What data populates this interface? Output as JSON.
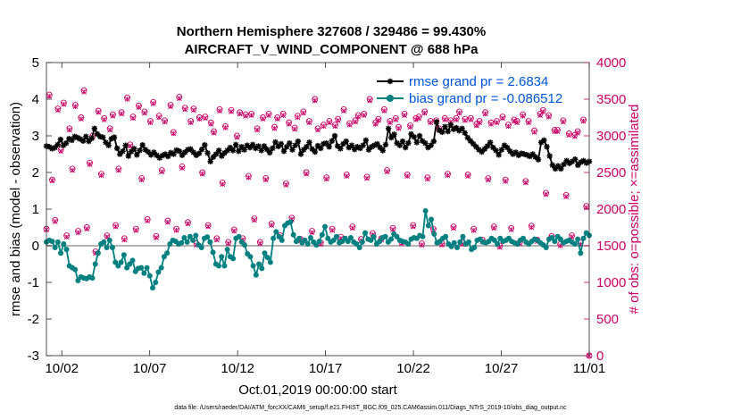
{
  "chart_data": {
    "type": "line",
    "title_line1": "Northern Hemisphere 327608 / 329486 = 99.430%",
    "title_line2": "AIRCRAFT_V_WIND_COMPONENT @ 688 hPa",
    "xlabel": "Oct.01,2019 00:00:00 start",
    "ylabel_left": "rmse and bias (model - observation)",
    "ylabel_right": "# of obs: o=possible; ×=assimilated",
    "footnote": "data file: /Users/raeder/DAI/ATM_forcXX/CAM6_setup/f.e21.FHIST_BGC.f09_025.CAM6assim.011/Diags_NTrS_2019-10/obs_diag_output.nc",
    "x_tick_labels": [
      "10/02",
      "10/07",
      "10/12",
      "10/17",
      "10/22",
      "10/27",
      "11/01"
    ],
    "x_tick_days": [
      1,
      6,
      11,
      16,
      21,
      26,
      31
    ],
    "xlim_days": [
      0.125,
      31
    ],
    "ylim_left": [
      -3,
      5
    ],
    "y_ticks_left": [
      "-3",
      "-2",
      "-1",
      "0",
      "1",
      "2",
      "3",
      "4",
      "5"
    ],
    "ylim_right": [
      0,
      4000
    ],
    "y_ticks_right": [
      "0",
      "500",
      "1000",
      "1500",
      "2000",
      "2500",
      "3000",
      "3500",
      "4000"
    ],
    "legend": {
      "rmse_label": "rmse grand pr = 2.6834",
      "bias_label": "bias grand pr = -0.086512"
    },
    "colors": {
      "rmse": "#000000",
      "bias": "#008080",
      "obs": "#cc0066",
      "zero_line": "#b3b3b3"
    },
    "series": [
      {
        "name": "rmse",
        "values": [
          2.72,
          2.7,
          2.65,
          2.68,
          2.76,
          2.9,
          2.74,
          2.8,
          2.92,
          2.88,
          2.98,
          2.95,
          2.91,
          2.86,
          2.98,
          2.85,
          2.93,
          3.2,
          3.05,
          2.98,
          2.96,
          2.82,
          2.74,
          2.92,
          2.96,
          2.66,
          2.5,
          2.58,
          2.74,
          2.45,
          2.57,
          2.65,
          2.48,
          2.6,
          2.75,
          2.62,
          2.56,
          2.48,
          2.55,
          2.47,
          2.4,
          2.46,
          2.5,
          2.44,
          2.54,
          2.5,
          2.61,
          2.58,
          2.47,
          2.55,
          2.62,
          2.64,
          2.55,
          2.47,
          2.52,
          2.63,
          2.75,
          2.53,
          2.3,
          2.42,
          2.5,
          2.6,
          2.45,
          2.53,
          2.6,
          2.68,
          2.6,
          2.76,
          2.58,
          2.7,
          2.62,
          2.74,
          2.68,
          2.76,
          2.66,
          2.72,
          2.6,
          2.72,
          2.63,
          2.54,
          2.66,
          2.83,
          2.71,
          2.78,
          2.58,
          2.7,
          2.8,
          2.62,
          2.74,
          2.85,
          2.5,
          2.62,
          2.7,
          2.82,
          2.64,
          2.56,
          2.73,
          2.66,
          2.78,
          2.8,
          2.7,
          2.86,
          3.0,
          2.72,
          2.65,
          2.78,
          2.85,
          2.68,
          2.74,
          2.63,
          2.7,
          2.66,
          2.74,
          2.88,
          2.62,
          2.7,
          2.74,
          2.78,
          2.68,
          2.6,
          2.76,
          3.2,
          2.95,
          3.04,
          2.8,
          2.74,
          2.85,
          2.68,
          2.8,
          3.05,
          2.97,
          2.82,
          3.0,
          2.86,
          2.8,
          2.68,
          2.74,
          2.85,
          3.38,
          3.15,
          3.1,
          3.25,
          3.12,
          3.3,
          3.18,
          3.22,
          3.14,
          3.2,
          3.08,
          2.95,
          2.86,
          2.78,
          2.7,
          2.62,
          2.56,
          2.64,
          2.72,
          2.82,
          2.68,
          2.6,
          2.48,
          2.62,
          2.74,
          2.68,
          2.58,
          2.5,
          2.55,
          2.47,
          2.52,
          2.5,
          2.48,
          2.44,
          2.5,
          2.42,
          2.35,
          2.82,
          2.88,
          2.7,
          2.45,
          2.2,
          2.1,
          2.18,
          2.1,
          2.22,
          2.32,
          2.25,
          2.3,
          2.36,
          2.2,
          2.28,
          2.32,
          2.26,
          2.3
        ]
      },
      {
        "name": "bias",
        "values": [
          0.1,
          0.15,
          0.12,
          -0.05,
          0.1,
          -0.2,
          0.05,
          -0.1,
          -0.55,
          -0.6,
          -0.65,
          -0.95,
          -0.85,
          -0.88,
          -0.9,
          -0.85,
          -0.88,
          -0.5,
          -0.2,
          0.05,
          0.1,
          -0.05,
          0.15,
          -0.05,
          -0.45,
          -0.55,
          -0.45,
          -0.25,
          -0.6,
          -0.5,
          -0.4,
          -0.7,
          -0.62,
          -0.6,
          -0.75,
          -0.6,
          -0.82,
          -1.15,
          -1.0,
          -0.72,
          -0.6,
          -0.3,
          -0.2,
          0.05,
          0.15,
          0.12,
          0.05,
          0.08,
          0.22,
          0.1,
          0.25,
          0.15,
          0.28,
          0.02,
          -0.05,
          0.2,
          0.24,
          0.1,
          -0.18,
          -0.5,
          -0.55,
          -0.3,
          -0.55,
          -0.1,
          -0.3,
          -0.35,
          0.2,
          0.25,
          0.1,
          0.02,
          -0.22,
          -0.3,
          -0.55,
          -0.8,
          -0.5,
          -0.62,
          -0.2,
          -0.32,
          -0.45,
          0.2,
          0.38,
          0.25,
          0.15,
          0.55,
          0.62,
          0.65,
          0.3,
          0.12,
          0.2,
          0.08,
          0.15,
          0.05,
          0.22,
          0.1,
          0.02,
          0.12,
          0.3,
          0.52,
          0.2,
          0.1,
          0.15,
          0.25,
          0.08,
          0.12,
          0.2,
          0.12,
          0.22,
          0.1,
          0.05,
          -0.05,
          0.1,
          0.35,
          0.18,
          0.15,
          0.25,
          0.05,
          0.12,
          0.22,
          0.25,
          0.1,
          0.18,
          0.32,
          0.25,
          0.15,
          0.12,
          0.1,
          0.05,
          0.18,
          0.22,
          0.2,
          0.28,
          0.25,
          0.95,
          0.55,
          0.72,
          0.32,
          0.08,
          0.12,
          0.2,
          0.25,
          0.05,
          -0.02,
          0.08,
          -0.05,
          0.1,
          0.25,
          0.05,
          0.1,
          -0.1,
          -0.05,
          0.15,
          0.18,
          0.1,
          0.08,
          0.12,
          0.2,
          0.15,
          0.05,
          0.2,
          0.12,
          0.15,
          0.2,
          0.12,
          0.08,
          0.05,
          0.15,
          0.2,
          0.1,
          0.05,
          0.12,
          0.18,
          0.15,
          0.08,
          0.02,
          -0.05,
          0.18,
          0.22,
          0.12,
          0.25,
          0.18,
          0.08,
          0.12,
          0.15,
          0.1,
          0.05,
          0.18,
          -0.2,
          0.2,
          0.35,
          0.28
        ]
      }
    ],
    "obs_possible": [
      1730,
      3560,
      2400,
      1850,
      3370,
      2810,
      3450,
      1640,
      3100,
      2550,
      3420,
      1700,
      3250,
      3620,
      1750,
      2630,
      3000,
      1420,
      3340,
      2480,
      3240,
      1640,
      3100,
      3290,
      1780,
      2550,
      3320,
      1600,
      3520,
      2880,
      3260,
      1730,
      3410,
      2420,
      3330,
      1860,
      3200,
      3460,
      1630,
      3270,
      2530,
      3210,
      1840,
      3420,
      3050,
      1730,
      3530,
      2580,
      3380,
      1820,
      3200,
      3370,
      1530,
      3250,
      2500,
      3260,
      1780,
      3180,
      3060,
      1600,
      3360,
      2360,
      3130,
      1550,
      3350,
      1720,
      3000,
      3320,
      1600,
      3290,
      2450,
      3300,
      1870,
      3100,
      1550,
      3250,
      2420,
      3300,
      1800,
      3120,
      3250,
      1640,
      3300,
      2350,
      3180,
      1880,
      3110,
      3270,
      1590,
      3330,
      2500,
      3200,
      1700,
      3500,
      3100,
      1540,
      3150,
      2430,
      3200,
      1730,
      3150,
      3230,
      1620,
      3360,
      2470,
      3170,
      1760,
      3210,
      3280,
      1590,
      3300,
      2440,
      3500,
      1670,
      3180,
      3230,
      1600,
      3360,
      2530,
      3200,
      1740,
      3240,
      3120,
      1550,
      3300,
      2470,
      3140,
      1780,
      3240,
      3260,
      1530,
      3330,
      2430,
      3200,
      1730,
      3210,
      3100,
      1530,
      3240,
      2480,
      3210,
      1760,
      3240,
      3330,
      1540,
      3230,
      2470,
      3240,
      1730,
      3160,
      3200,
      1580,
      3320,
      2420,
      3180,
      1760,
      3200,
      1500,
      3260,
      2400,
      3150,
      1740,
      3220,
      3200,
      1550,
      3290,
      2380,
      3200,
      1770,
      3070,
      1580,
      3300,
      3350,
      2220,
      3280,
      1630,
      3080,
      3080,
      1520,
      3210,
      2190,
      3030,
      1640,
      3010,
      3060,
      1540,
      3220,
      2040,
      0
    ],
    "obs_assimilated": [
      1720,
      3540,
      2390,
      1830,
      3350,
      2790,
      3430,
      1620,
      3080,
      2530,
      3400,
      1680,
      3230,
      3600,
      1730,
      2610,
      2980,
      1400,
      3320,
      2460,
      3220,
      1620,
      3080,
      3270,
      1760,
      2530,
      3300,
      1580,
      3500,
      2860,
      3240,
      1710,
      3390,
      2400,
      3310,
      1840,
      3180,
      3440,
      1610,
      3250,
      2510,
      3190,
      1820,
      3400,
      3030,
      1710,
      3510,
      2560,
      3360,
      1800,
      3180,
      3350,
      1510,
      3230,
      2480,
      3240,
      1760,
      3160,
      3040,
      1580,
      3340,
      2340,
      3110,
      1530,
      3330,
      1700,
      2980,
      3300,
      1580,
      3270,
      2430,
      3280,
      1850,
      3080,
      1530,
      3230,
      2400,
      3280,
      1780,
      3100,
      3230,
      1620,
      3280,
      2330,
      3160,
      1860,
      3090,
      3250,
      1570,
      3310,
      2480,
      3180,
      1680,
      3480,
      3080,
      1520,
      3130,
      2410,
      3180,
      1710,
      3130,
      3210,
      1600,
      3340,
      2450,
      3150,
      1740,
      3190,
      3260,
      1570,
      3280,
      2420,
      3480,
      1650,
      3160,
      3210,
      1580,
      3340,
      2510,
      3180,
      1720,
      3220,
      3100,
      1530,
      3280,
      2450,
      3120,
      1760,
      3220,
      3240,
      1510,
      3310,
      2410,
      3180,
      1710,
      3190,
      3080,
      1510,
      3220,
      2460,
      3190,
      1740,
      3220,
      3310,
      1520,
      3210,
      2450,
      3220,
      1710,
      3140,
      3180,
      1560,
      3300,
      2400,
      3160,
      1740,
      3180,
      1480,
      3240,
      2380,
      3130,
      1720,
      3200,
      3180,
      1530,
      3270,
      2360,
      3180,
      1750,
      3050,
      1560,
      3280,
      3330,
      2200,
      3260,
      1610,
      3060,
      3060,
      1500,
      3190,
      2170,
      3010,
      1620,
      2990,
      3040,
      1520,
      3200,
      2020,
      0
    ]
  }
}
